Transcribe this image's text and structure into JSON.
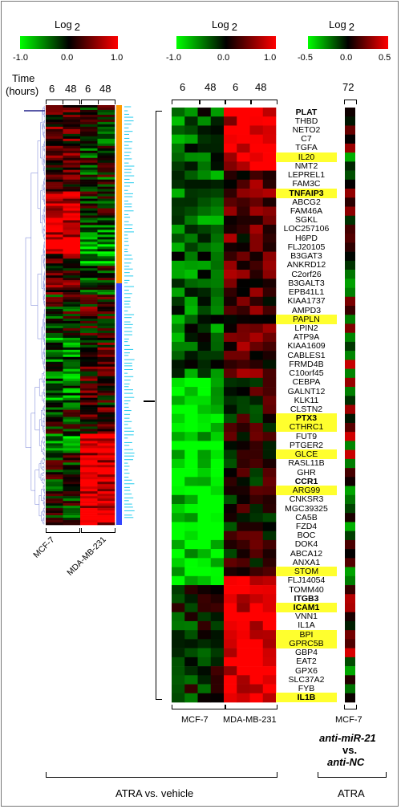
{
  "scales": [
    {
      "title": "Log",
      "sub": "2",
      "min": "-1.0",
      "mid": "0.0",
      "max": "1.0",
      "colors": [
        "#00ff00",
        "#000000",
        "#ff0000"
      ]
    },
    {
      "title": "Log",
      "sub": "2",
      "min": "-1.0",
      "mid": "0.0",
      "max": "1.0",
      "colors": [
        "#00ff00",
        "#000000",
        "#ff0000"
      ]
    },
    {
      "title": "Log",
      "sub": "2",
      "min": "-0.5",
      "mid": "0.0",
      "max": "0.5",
      "colors": [
        "#00ff00",
        "#000000",
        "#ff0000"
      ]
    }
  ],
  "left_panel": {
    "time_label": "Time",
    "hours_label": "(hours)",
    "times": [
      "6",
      "48",
      "6",
      "48"
    ],
    "cells": [
      "MCF-7",
      "MDA-MB-231"
    ],
    "cluster_colors": [
      "#ff9900",
      "#3344ff"
    ],
    "tick_color": "#22ccee"
  },
  "right_panel": {
    "times": [
      "6",
      "48",
      "6",
      "48"
    ],
    "anti_time": "72",
    "cells": [
      "MCF-7",
      "MDA-MB-231"
    ],
    "anti_cell": "MCF-7",
    "genes": [
      {
        "name": "PLAT",
        "hl": false,
        "bold": true
      },
      {
        "name": "THBD",
        "hl": false,
        "bold": false
      },
      {
        "name": "NETO2",
        "hl": false,
        "bold": false
      },
      {
        "name": "C7",
        "hl": false,
        "bold": false
      },
      {
        "name": "TGFA",
        "hl": false,
        "bold": false
      },
      {
        "name": "IL20",
        "hl": true,
        "bold": false
      },
      {
        "name": "NMT2",
        "hl": false,
        "bold": false
      },
      {
        "name": "LEPREL1",
        "hl": false,
        "bold": false
      },
      {
        "name": "FAM3C",
        "hl": false,
        "bold": false
      },
      {
        "name": "TNFAIP3",
        "hl": true,
        "bold": true
      },
      {
        "name": "ABCG2",
        "hl": false,
        "bold": false
      },
      {
        "name": "FAM46A",
        "hl": false,
        "bold": false
      },
      {
        "name": "SGKL",
        "hl": false,
        "bold": false
      },
      {
        "name": "LOC257106",
        "hl": false,
        "bold": false
      },
      {
        "name": "H6PD",
        "hl": false,
        "bold": false
      },
      {
        "name": "FLJ20105",
        "hl": false,
        "bold": false
      },
      {
        "name": "B3GAT3",
        "hl": false,
        "bold": false
      },
      {
        "name": "ANKRD12",
        "hl": false,
        "bold": false
      },
      {
        "name": "C2orf26",
        "hl": false,
        "bold": false
      },
      {
        "name": "B3GALT3",
        "hl": false,
        "bold": false
      },
      {
        "name": "EPB41L1",
        "hl": false,
        "bold": false
      },
      {
        "name": "KIAA1737",
        "hl": false,
        "bold": false
      },
      {
        "name": "AMPD3",
        "hl": false,
        "bold": false
      },
      {
        "name": "PAPLN",
        "hl": true,
        "bold": false
      },
      {
        "name": "LPIN2",
        "hl": false,
        "bold": false
      },
      {
        "name": "ATP9A",
        "hl": false,
        "bold": false
      },
      {
        "name": "KIAA1609",
        "hl": false,
        "bold": false
      },
      {
        "name": "CABLES1",
        "hl": false,
        "bold": false
      },
      {
        "name": "FRMD4B",
        "hl": false,
        "bold": false
      },
      {
        "name": "C10orf45",
        "hl": false,
        "bold": false
      },
      {
        "name": "CEBPA",
        "hl": false,
        "bold": false
      },
      {
        "name": "GALNT12",
        "hl": false,
        "bold": false
      },
      {
        "name": "KLK11",
        "hl": false,
        "bold": false
      },
      {
        "name": "CLSTN2",
        "hl": false,
        "bold": false
      },
      {
        "name": "PTX3",
        "hl": true,
        "bold": true
      },
      {
        "name": "CTHRC1",
        "hl": true,
        "bold": false
      },
      {
        "name": "FUT9",
        "hl": false,
        "bold": false
      },
      {
        "name": "PTGER2",
        "hl": false,
        "bold": false
      },
      {
        "name": "GLCE",
        "hl": true,
        "bold": false
      },
      {
        "name": "RASL11B",
        "hl": false,
        "bold": false
      },
      {
        "name": "GHR",
        "hl": false,
        "bold": false
      },
      {
        "name": "CCR1",
        "hl": false,
        "bold": true
      },
      {
        "name": "ARG99",
        "hl": true,
        "bold": false
      },
      {
        "name": "CNKSR3",
        "hl": false,
        "bold": false
      },
      {
        "name": "MGC39325",
        "hl": false,
        "bold": false
      },
      {
        "name": "CA5B",
        "hl": false,
        "bold": false
      },
      {
        "name": "FZD4",
        "hl": false,
        "bold": false
      },
      {
        "name": "BOC",
        "hl": false,
        "bold": false
      },
      {
        "name": "DOK4",
        "hl": false,
        "bold": false
      },
      {
        "name": "ABCA12",
        "hl": false,
        "bold": false
      },
      {
        "name": "ANXA1",
        "hl": false,
        "bold": false
      },
      {
        "name": "STOM",
        "hl": true,
        "bold": false
      },
      {
        "name": "FLJ14054",
        "hl": false,
        "bold": false
      },
      {
        "name": "TOMM40",
        "hl": false,
        "bold": false
      },
      {
        "name": "ITGB3",
        "hl": false,
        "bold": true
      },
      {
        "name": "ICAM1",
        "hl": true,
        "bold": true
      },
      {
        "name": "VNN1",
        "hl": false,
        "bold": false
      },
      {
        "name": "IL1A",
        "hl": false,
        "bold": false
      },
      {
        "name": "BPI",
        "hl": true,
        "bold": false
      },
      {
        "name": "GPRC5B",
        "hl": true,
        "bold": false
      },
      {
        "name": "GBP4",
        "hl": false,
        "bold": false
      },
      {
        "name": "EAT2",
        "hl": false,
        "bold": false
      },
      {
        "name": "GPX6",
        "hl": false,
        "bold": false
      },
      {
        "name": "SLC37A2",
        "hl": false,
        "bold": false
      },
      {
        "name": "FYB",
        "hl": false,
        "bold": false
      },
      {
        "name": "IL1B",
        "hl": true,
        "bold": true
      }
    ]
  },
  "comparison": {
    "line1": "anti-miR-21",
    "line2": "vs.",
    "line3": "anti-NC"
  },
  "bottom": {
    "left_label": "ATRA vs. vehicle",
    "right_label": "ATRA"
  }
}
